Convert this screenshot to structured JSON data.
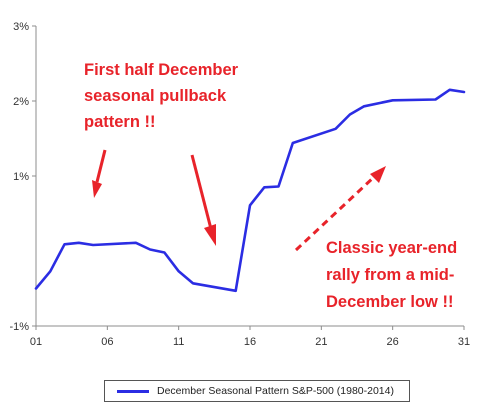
{
  "chart_data": {
    "type": "line",
    "x_tick_labels": [
      "01",
      "06",
      "11",
      "16",
      "21",
      "26",
      "31"
    ],
    "x_tick_values": [
      1,
      6,
      11,
      16,
      21,
      26,
      31
    ],
    "y_tick_labels": [
      "-1%",
      "1%",
      "2%",
      "3%"
    ],
    "y_tick_values": [
      -1,
      1,
      2,
      3
    ],
    "xlim": [
      1,
      31
    ],
    "ylim": [
      -1,
      3
    ],
    "grid": false,
    "legend_position": "bottom",
    "series": [
      {
        "name": "December Seasonal Pattern S&P-500 (1980-2014)",
        "color": "#2b2de3",
        "x": [
          1,
          2,
          3,
          4,
          5,
          8,
          9,
          10,
          11,
          12,
          15,
          16,
          17,
          18,
          19,
          22,
          23,
          24,
          26,
          29,
          30,
          31
        ],
        "y": [
          -0.5,
          -0.27,
          0.09,
          0.11,
          0.08,
          0.11,
          0.02,
          -0.02,
          -0.27,
          -0.43,
          -0.53,
          0.61,
          0.85,
          0.86,
          1.44,
          1.63,
          1.82,
          1.93,
          2.01,
          2.02,
          2.15,
          2.12
        ]
      }
    ],
    "annotations": [
      {
        "lines": [
          "First half December",
          "seasonal pullback",
          "pattern !!"
        ],
        "color": "#e8232a"
      },
      {
        "lines": [
          "Classic year-end",
          "rally from a mid-",
          "December low !!"
        ],
        "color": "#e8232a"
      }
    ]
  }
}
